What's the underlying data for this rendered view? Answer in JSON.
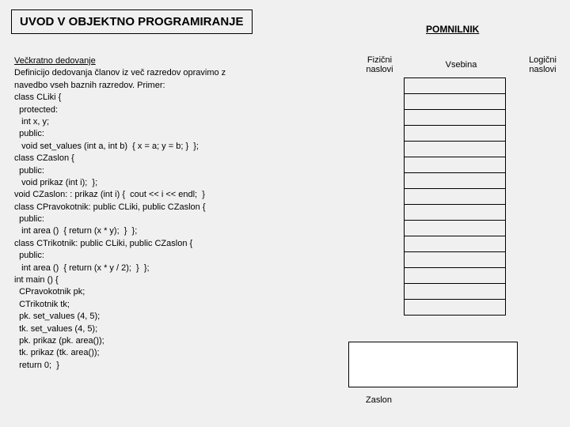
{
  "title": "UVOD V OBJEKTNO PROGRAMIRANJE",
  "memory_title": "POMNILNIK",
  "subtitle": "Večkratno dedovanje",
  "description_lines": [
    "Definicijo dedovanja članov iz več razredov opravimo z",
    "navedbo vseh baznih razredov. Primer:"
  ],
  "code_lines": [
    "class CLiki {",
    "  protected:",
    "   int x, y;",
    "  public:",
    "   void set_values (int a, int b)  { x = a; y = b; }  };",
    "class CZaslon {",
    "  public:",
    "   void prikaz (int i);  };",
    "void CZaslon: : prikaz (int i) {  cout << i << endl;  }",
    "class CPravokotnik: public CLiki, public CZaslon {",
    "  public:",
    "   int area ()  { return (x * y);  }  };",
    "class CTrikotnik: public CLiki, public CZaslon {",
    "  public:",
    "   int area ()  { return (x * y / 2);  }  };",
    "int main () {",
    "  CPravokotnik pk;",
    "  CTrikotnik tk;",
    "  pk. set_values (4, 5);",
    "  tk. set_values (4, 5);",
    "  pk. prikaz (pk. area());",
    "  tk. prikaz (tk. area());",
    "  return 0;  }"
  ],
  "column_headers": {
    "fizicni": "Fizični naslovi",
    "vsebina": "Vsebina",
    "logicni": "Logični naslovi"
  },
  "memory_rows": 15,
  "zaslon_label": "Zaslon",
  "colors": {
    "background": "#f0f0f0",
    "border": "#000000",
    "zaslon_bg": "#ffffff"
  }
}
